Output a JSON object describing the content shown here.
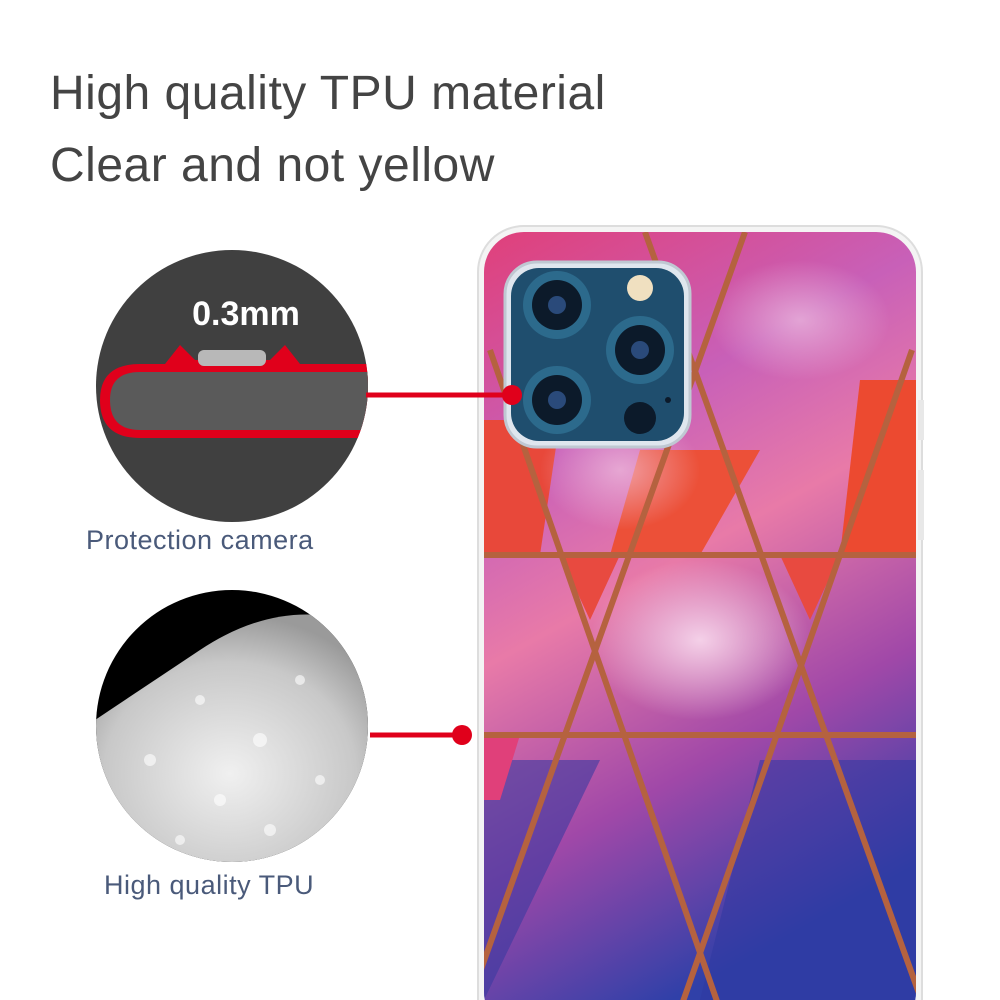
{
  "headline": {
    "line1": "High quality TPU material",
    "line2": "Clear and not yellow"
  },
  "callouts": [
    {
      "label": "Protection camera",
      "detail": "0.3mm"
    },
    {
      "label": "High quality TPU"
    }
  ],
  "colors": {
    "accent_red": "#e0001b",
    "circle_dark": "#404040",
    "headline_text": "#444444",
    "caption_text": "#4a5a7a",
    "copper_lines": "#b5623f"
  }
}
